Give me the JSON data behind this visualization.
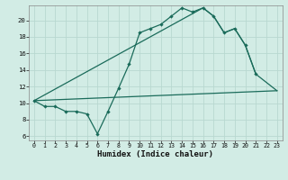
{
  "xlabel": "Humidex (Indice chaleur)",
  "bg_color": "#d2ece5",
  "grid_color": "#b8d8d0",
  "line_color": "#1a6b5a",
  "xlim": [
    -0.5,
    23.5
  ],
  "ylim": [
    5.5,
    21.8
  ],
  "xticks": [
    0,
    1,
    2,
    3,
    4,
    5,
    6,
    7,
    8,
    9,
    10,
    11,
    12,
    13,
    14,
    15,
    16,
    17,
    18,
    19,
    20,
    21,
    22,
    23
  ],
  "yticks": [
    6,
    8,
    10,
    12,
    14,
    16,
    18,
    20
  ],
  "line1_x": [
    0,
    1,
    2,
    3,
    4,
    5,
    6,
    7,
    8,
    9,
    10,
    11,
    12,
    13,
    14,
    15,
    16,
    17,
    18,
    19,
    20,
    21
  ],
  "line1_y": [
    10.3,
    9.6,
    9.6,
    9.0,
    9.0,
    8.7,
    6.3,
    9.0,
    11.8,
    14.7,
    18.5,
    19.0,
    19.5,
    20.5,
    21.5,
    21.0,
    21.5,
    20.5,
    18.5,
    19.0,
    17.0,
    13.5
  ],
  "line2_x": [
    0,
    23
  ],
  "line2_y": [
    10.3,
    11.5
  ],
  "line3_x": [
    0,
    16,
    17,
    18,
    19,
    20,
    21,
    23
  ],
  "line3_y": [
    10.3,
    21.5,
    20.5,
    18.5,
    19.0,
    17.0,
    13.5,
    11.5
  ]
}
